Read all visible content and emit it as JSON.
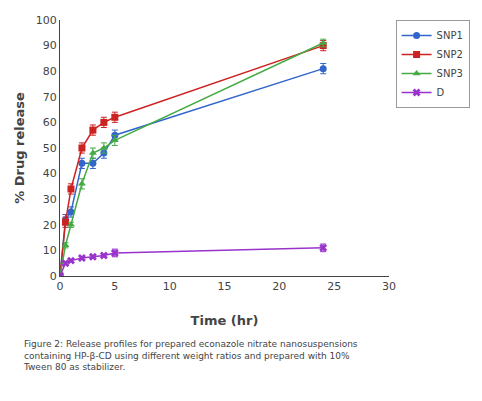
{
  "chart_data": {
    "type": "line",
    "xlabel": "Time (hr)",
    "ylabel": "% Drug release",
    "caption": "Figure 2: Release profiles for prepared econazole nitrate nanosuspensions\ncontaining HP-β-CD using different weight ratios and prepared with 10%\nTween 80 as stabilizer.",
    "x": [
      0,
      0.5,
      1,
      2,
      3,
      4,
      5,
      24
    ],
    "series": [
      {
        "name": "SNP1",
        "color": "#3366CC",
        "marker": "circle",
        "values": [
          0,
          22,
          25,
          44,
          44,
          48,
          55,
          81
        ],
        "yerr": [
          0,
          2,
          2,
          2,
          2,
          2,
          2,
          2
        ]
      },
      {
        "name": "SNP2",
        "color": "#CC2222",
        "marker": "square",
        "values": [
          0,
          21,
          34,
          50,
          57,
          60,
          62,
          90
        ],
        "yerr": [
          0,
          2,
          2,
          2,
          2,
          2,
          2,
          2
        ]
      },
      {
        "name": "SNP3",
        "color": "#44AA44",
        "marker": "triangle-up",
        "values": [
          0,
          12,
          20,
          36,
          48,
          50,
          53,
          91
        ],
        "yerr": [
          0,
          1,
          1,
          2,
          2,
          2,
          2,
          1.5
        ]
      },
      {
        "name": "D",
        "color": "#9933CC",
        "marker": "x",
        "values": [
          0,
          5,
          6,
          7,
          7.5,
          8,
          9,
          11
        ],
        "yerr": [
          0,
          0.5,
          0.5,
          0.5,
          0.5,
          0.5,
          1.5,
          1.5
        ]
      }
    ],
    "xlim": [
      0,
      30
    ],
    "ylim": [
      0,
      100
    ],
    "xticks": [
      0,
      5,
      10,
      15,
      20,
      25,
      30
    ],
    "yticks": [
      0,
      10,
      20,
      30,
      40,
      50,
      60,
      70,
      80,
      90,
      100
    ],
    "grid": false,
    "legend": "right"
  }
}
